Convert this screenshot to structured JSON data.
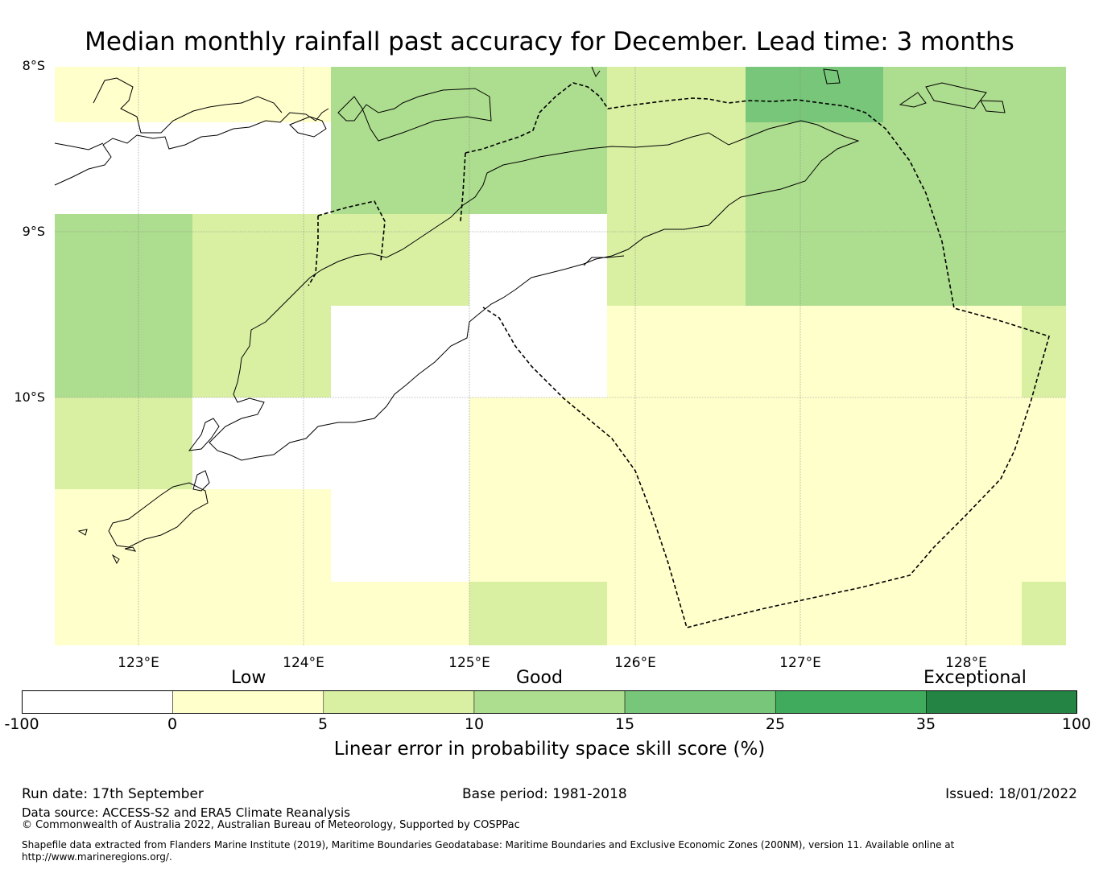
{
  "title": "Median monthly rainfall past accuracy for December. Lead time: 3 months",
  "map": {
    "lat_labels": [
      "8°S",
      "9°S",
      "10°S"
    ],
    "lon_labels": [
      "123°E",
      "124°E",
      "125°E",
      "126°E",
      "127°E",
      "128°E"
    ],
    "lat_range": [
      -11.5,
      -8.0
    ],
    "lon_range": [
      122.5,
      128.6
    ],
    "grid_skill_categories": [
      [
        1,
        1,
        3,
        3,
        2,
        4,
        3,
        3
      ],
      [
        0,
        0,
        3,
        3,
        2,
        3,
        3,
        3
      ],
      [
        3,
        2,
        2,
        0,
        2,
        3,
        3,
        3
      ],
      [
        3,
        2,
        0,
        0,
        1,
        1,
        1,
        2
      ],
      [
        2,
        0,
        0,
        1,
        1,
        1,
        1,
        1
      ],
      [
        1,
        1,
        0,
        1,
        1,
        1,
        1,
        1
      ],
      [
        1,
        1,
        1,
        2,
        1,
        1,
        1,
        2
      ]
    ],
    "colors": {
      "no_skill": "#ffffff",
      "low": "#ffffcc",
      "low_mid": "#d9f0a3",
      "good": "#addd8e",
      "good_high": "#78c679",
      "high": "#41ab5d",
      "exceptional": "#238443",
      "outline": "#000000",
      "grid": "#888888"
    }
  },
  "colorbar": {
    "categories": [
      "Low",
      "Good",
      "Exceptional"
    ],
    "ticks": [
      "-100",
      "0",
      "5",
      "10",
      "15",
      "25",
      "35",
      "100"
    ],
    "colors": [
      "#ffffff",
      "#ffffcc",
      "#d9f0a3",
      "#addd8e",
      "#78c679",
      "#41ab5d",
      "#238443"
    ],
    "label": "Linear error in probability space skill score (%)"
  },
  "footer": {
    "run_date": "Run date: 17th September",
    "base_period": "Base period: 1981-2018",
    "issued": "Issued: 18/01/2022",
    "data_source": "Data source: ACCESS-S2 and ERA5 Climate Reanalysis",
    "copyright": "© Commonwealth of Australia 2022, Australian Bureau of Meteorology, Supported by COSPPac",
    "shapefile": "Shapefile data extracted from Flanders Marine Institute (2019), Maritime Boundaries Geodatabase: Maritime Boundaries and Exclusive Economic Zones (200NM), version 11. Available online at",
    "url": "http://www.marineregions.org/."
  }
}
